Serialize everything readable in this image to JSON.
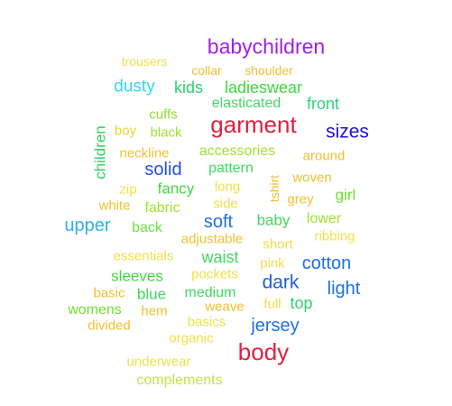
{
  "words": {
    "babychildren": {
      "text": "babychildren",
      "color": "#a020e6"
    },
    "trousers": {
      "text": "trousers",
      "color": "#f0e04a"
    },
    "collar": {
      "text": "collar",
      "color": "#f0c030"
    },
    "shoulder": {
      "text": "shoulder",
      "color": "#f0c030"
    },
    "dusty": {
      "text": "dusty",
      "color": "#30d8f0"
    },
    "kids": {
      "text": "kids",
      "color": "#30d070"
    },
    "ladieswear": {
      "text": "ladieswear",
      "color": "#40d840"
    },
    "elasticated": {
      "text": "elasticated",
      "color": "#40d860"
    },
    "front": {
      "text": "front",
      "color": "#30d080"
    },
    "cuffs": {
      "text": "cuffs",
      "color": "#90e030"
    },
    "garment": {
      "text": "garment",
      "color": "#e02040"
    },
    "sizes": {
      "text": "sizes",
      "color": "#2010d0"
    },
    "boy": {
      "text": "boy",
      "color": "#f0d030"
    },
    "black": {
      "text": "black",
      "color": "#a0e030"
    },
    "children": {
      "text": "children",
      "color": "#30d060"
    },
    "neckline": {
      "text": "neckline",
      "color": "#f0c030"
    },
    "accessories": {
      "text": "accessories",
      "color": "#a0e030"
    },
    "around": {
      "text": "around",
      "color": "#f0c030"
    },
    "solid": {
      "text": "solid",
      "color": "#2050e0"
    },
    "pattern": {
      "text": "pattern",
      "color": "#40d860"
    },
    "tshirt": {
      "text": "tshirt",
      "color": "#f0c030"
    },
    "woven": {
      "text": "woven",
      "color": "#f0c030"
    },
    "zip": {
      "text": "zip",
      "color": "#f0e04a"
    },
    "fancy": {
      "text": "fancy",
      "color": "#40d840"
    },
    "long": {
      "text": "long",
      "color": "#f0e04a"
    },
    "girl": {
      "text": "girl",
      "color": "#70e030"
    },
    "grey": {
      "text": "grey",
      "color": "#f0c030"
    },
    "white": {
      "text": "white",
      "color": "#f0c030"
    },
    "fabric": {
      "text": "fabric",
      "color": "#a0e030"
    },
    "side": {
      "text": "side",
      "color": "#f0e04a"
    },
    "soft": {
      "text": "soft",
      "color": "#2070e0"
    },
    "baby": {
      "text": "baby",
      "color": "#40d860"
    },
    "lower": {
      "text": "lower",
      "color": "#a0e030"
    },
    "upper": {
      "text": "upper",
      "color": "#30b0e8"
    },
    "back": {
      "text": "back",
      "color": "#70e040"
    },
    "adjustable": {
      "text": "adjustable",
      "color": "#f0c030"
    },
    "ribbing": {
      "text": "ribbing",
      "color": "#f0e04a"
    },
    "short": {
      "text": "short",
      "color": "#f0e04a"
    },
    "essentials": {
      "text": "essentials",
      "color": "#f0e04a"
    },
    "waist": {
      "text": "waist",
      "color": "#40d860"
    },
    "pink": {
      "text": "pink",
      "color": "#f0e04a"
    },
    "cotton": {
      "text": "cotton",
      "color": "#2070e0"
    },
    "sleeves": {
      "text": "sleeves",
      "color": "#40d840"
    },
    "pockets": {
      "text": "pockets",
      "color": "#f0e04a"
    },
    "dark": {
      "text": "dark",
      "color": "#2060e0"
    },
    "light": {
      "text": "light",
      "color": "#2070e0"
    },
    "basic": {
      "text": "basic",
      "color": "#f0c030"
    },
    "blue": {
      "text": "blue",
      "color": "#40d860"
    },
    "medium": {
      "text": "medium",
      "color": "#40d860"
    },
    "top": {
      "text": "top",
      "color": "#30d070"
    },
    "womens": {
      "text": "womens",
      "color": "#70e030"
    },
    "hem": {
      "text": "hem",
      "color": "#f0c030"
    },
    "weave": {
      "text": "weave",
      "color": "#f0c030"
    },
    "full": {
      "text": "full",
      "color": "#f0e04a"
    },
    "divided": {
      "text": "divided",
      "color": "#f0c030"
    },
    "basics": {
      "text": "basics",
      "color": "#f0e04a"
    },
    "jersey": {
      "text": "jersey",
      "color": "#2070e0"
    },
    "organic": {
      "text": "organic",
      "color": "#f0e04a"
    },
    "body": {
      "text": "body",
      "color": "#e02040"
    },
    "underwear": {
      "text": "underwear",
      "color": "#f0e04a"
    },
    "complements": {
      "text": "complements",
      "color": "#c0e840"
    }
  }
}
